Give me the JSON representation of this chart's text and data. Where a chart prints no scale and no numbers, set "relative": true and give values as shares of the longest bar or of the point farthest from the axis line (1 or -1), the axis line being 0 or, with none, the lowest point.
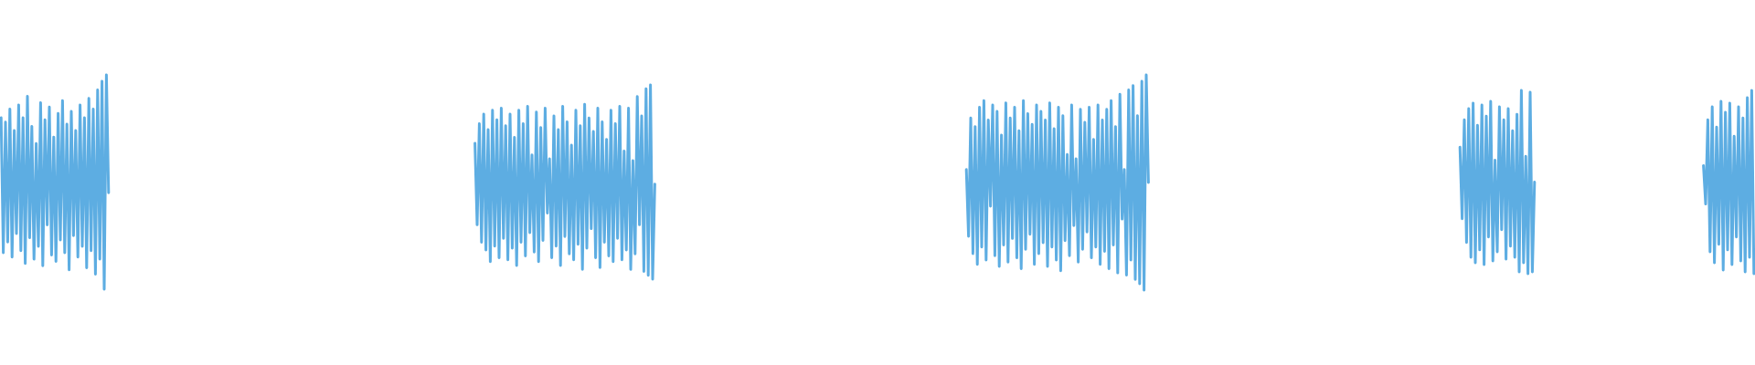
{
  "chart_data": [
    {
      "type": "line",
      "relative": true,
      "color": "#5dade2",
      "categories": [
        null,
        null,
        null,
        null,
        null,
        null,
        null,
        null,
        null,
        null,
        null,
        null,
        null,
        null,
        null,
        null,
        null,
        null,
        null,
        null,
        null,
        null,
        null,
        null,
        null,
        null,
        null,
        null,
        null,
        null,
        null,
        null,
        null,
        null,
        null,
        null,
        null,
        null,
        null,
        null,
        null,
        null,
        null,
        null,
        null,
        null,
        null,
        null,
        null,
        null
      ],
      "values": [
        0.8,
        0.17,
        0.78,
        0.22,
        0.84,
        0.15,
        0.74,
        0.26,
        0.86,
        0.18,
        0.8,
        0.12,
        0.9,
        0.24,
        0.76,
        0.14,
        0.68,
        0.2,
        0.87,
        0.11,
        0.79,
        0.3,
        0.85,
        0.16,
        0.71,
        0.13,
        0.82,
        0.23,
        0.88,
        0.17,
        0.77,
        0.09,
        0.83,
        0.25,
        0.74,
        0.15,
        0.86,
        0.2,
        0.8,
        0.1,
        0.89,
        0.18,
        0.84,
        0.07,
        0.93,
        0.14,
        0.97,
        0.0,
        1.0,
        0.45
      ]
    },
    {
      "type": "line",
      "relative": true,
      "color": "#5dade2",
      "categories": [
        null,
        null,
        null,
        null,
        null,
        null,
        null,
        null,
        null,
        null,
        null,
        null,
        null,
        null,
        null,
        null,
        null,
        null,
        null,
        null,
        null,
        null,
        null,
        null,
        null,
        null,
        null,
        null,
        null,
        null,
        null,
        null,
        null,
        null,
        null,
        null,
        null,
        null,
        null,
        null,
        null,
        null,
        null,
        null,
        null,
        null,
        null,
        null,
        null,
        null,
        null,
        null,
        null,
        null,
        null,
        null,
        null,
        null,
        null,
        null,
        null,
        null,
        null,
        null,
        null,
        null,
        null,
        null,
        null,
        null,
        null,
        null,
        null,
        null,
        null,
        null,
        null,
        null,
        null,
        null,
        null,
        null,
        null
      ],
      "values": [
        0.7,
        0.28,
        0.8,
        0.19,
        0.85,
        0.15,
        0.77,
        0.09,
        0.87,
        0.17,
        0.82,
        0.11,
        0.88,
        0.21,
        0.79,
        0.1,
        0.85,
        0.16,
        0.73,
        0.07,
        0.87,
        0.19,
        0.8,
        0.12,
        0.89,
        0.24,
        0.64,
        0.14,
        0.86,
        0.09,
        0.78,
        0.2,
        0.88,
        0.34,
        0.62,
        0.11,
        0.84,
        0.17,
        0.77,
        0.07,
        0.89,
        0.22,
        0.81,
        0.13,
        0.69,
        0.1,
        0.87,
        0.18,
        0.79,
        0.05,
        0.9,
        0.16,
        0.83,
        0.26,
        0.76,
        0.11,
        0.88,
        0.06,
        0.81,
        0.19,
        0.72,
        0.12,
        0.87,
        0.09,
        0.8,
        0.21,
        0.89,
        0.1,
        0.66,
        0.15,
        0.88,
        0.05,
        0.61,
        0.13,
        0.94,
        0.28,
        0.84,
        0.04,
        0.98,
        0.02,
        1.0,
        0.0,
        0.49
      ]
    },
    {
      "type": "line",
      "relative": true,
      "color": "#5dade2",
      "categories": [
        null,
        null,
        null,
        null,
        null,
        null,
        null,
        null,
        null,
        null,
        null,
        null,
        null,
        null,
        null,
        null,
        null,
        null,
        null,
        null,
        null,
        null,
        null,
        null,
        null,
        null,
        null,
        null,
        null,
        null,
        null,
        null,
        null,
        null,
        null,
        null,
        null,
        null,
        null,
        null,
        null,
        null,
        null,
        null,
        null,
        null,
        null,
        null,
        null,
        null,
        null,
        null,
        null,
        null,
        null,
        null,
        null,
        null,
        null,
        null,
        null,
        null,
        null,
        null,
        null,
        null,
        null,
        null,
        null,
        null,
        null,
        null,
        null,
        null,
        null,
        null,
        null,
        null,
        null,
        null,
        null,
        null,
        null,
        null
      ],
      "values": [
        0.56,
        0.25,
        0.8,
        0.17,
        0.76,
        0.12,
        0.85,
        0.2,
        0.88,
        0.14,
        0.79,
        0.39,
        0.86,
        0.16,
        0.83,
        0.11,
        0.72,
        0.21,
        0.87,
        0.13,
        0.8,
        0.24,
        0.85,
        0.15,
        0.74,
        0.1,
        0.88,
        0.19,
        0.82,
        0.26,
        0.77,
        0.12,
        0.86,
        0.17,
        0.83,
        0.22,
        0.79,
        0.11,
        0.87,
        0.2,
        0.75,
        0.14,
        0.85,
        0.09,
        0.81,
        0.23,
        0.63,
        0.16,
        0.86,
        0.3,
        0.61,
        0.13,
        0.84,
        0.19,
        0.78,
        0.27,
        0.85,
        0.15,
        0.7,
        0.2,
        0.86,
        0.12,
        0.79,
        0.18,
        0.84,
        0.1,
        0.88,
        0.21,
        0.76,
        0.08,
        0.91,
        0.33,
        0.56,
        0.07,
        0.93,
        0.14,
        0.95,
        0.05,
        0.81,
        0.03,
        0.97,
        0.0,
        1.0,
        0.5
      ]
    },
    {
      "type": "line",
      "relative": true,
      "color": "#5dade2",
      "categories": [
        null,
        null,
        null,
        null,
        null,
        null,
        null,
        null,
        null,
        null,
        null,
        null,
        null,
        null,
        null,
        null,
        null,
        null,
        null,
        null,
        null,
        null,
        null,
        null,
        null,
        null,
        null,
        null,
        null,
        null,
        null,
        null,
        null,
        null,
        null
      ],
      "values": [
        0.69,
        0.3,
        0.84,
        0.17,
        0.9,
        0.09,
        0.93,
        0.06,
        0.81,
        0.13,
        0.92,
        0.05,
        0.86,
        0.2,
        0.94,
        0.07,
        0.62,
        0.12,
        0.91,
        0.24,
        0.84,
        0.08,
        0.9,
        0.15,
        0.78,
        0.09,
        0.87,
        0.01,
        1.0,
        0.06,
        0.64,
        0.0,
        0.99,
        0.01,
        0.5
      ]
    },
    {
      "type": "line",
      "relative": true,
      "color": "#5dade2",
      "categories": [
        null,
        null,
        null,
        null,
        null,
        null,
        null,
        null,
        null,
        null,
        null,
        null,
        null,
        null,
        null,
        null,
        null,
        null,
        null,
        null,
        null,
        null,
        null,
        null
      ],
      "values": [
        0.59,
        0.38,
        0.84,
        0.12,
        0.91,
        0.06,
        0.8,
        0.16,
        0.94,
        0.02,
        0.88,
        0.13,
        0.93,
        0.05,
        0.75,
        0.2,
        0.91,
        0.07,
        0.85,
        0.01,
        0.96,
        0.09,
        1.0,
        0.0
      ]
    }
  ]
}
